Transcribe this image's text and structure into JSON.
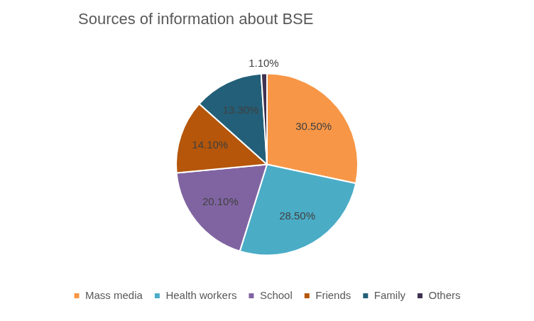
{
  "chart_data": {
    "type": "pie",
    "title": "Sources of information about BSE",
    "categories": [
      "Mass media",
      "Health workers",
      "School",
      "Friends",
      "Family",
      "Others"
    ],
    "values": [
      30.5,
      28.5,
      20.1,
      14.1,
      13.3,
      1.1
    ],
    "value_labels": [
      "30.50%",
      "28.50%",
      "20.10%",
      "14.10%",
      "13.30%",
      "1.10%"
    ],
    "colors": [
      "#f79646",
      "#4bacc6",
      "#8064a2",
      "#b5560a",
      "#235f78",
      "#3f3151"
    ],
    "legend": "bottom",
    "data_labels": true
  }
}
